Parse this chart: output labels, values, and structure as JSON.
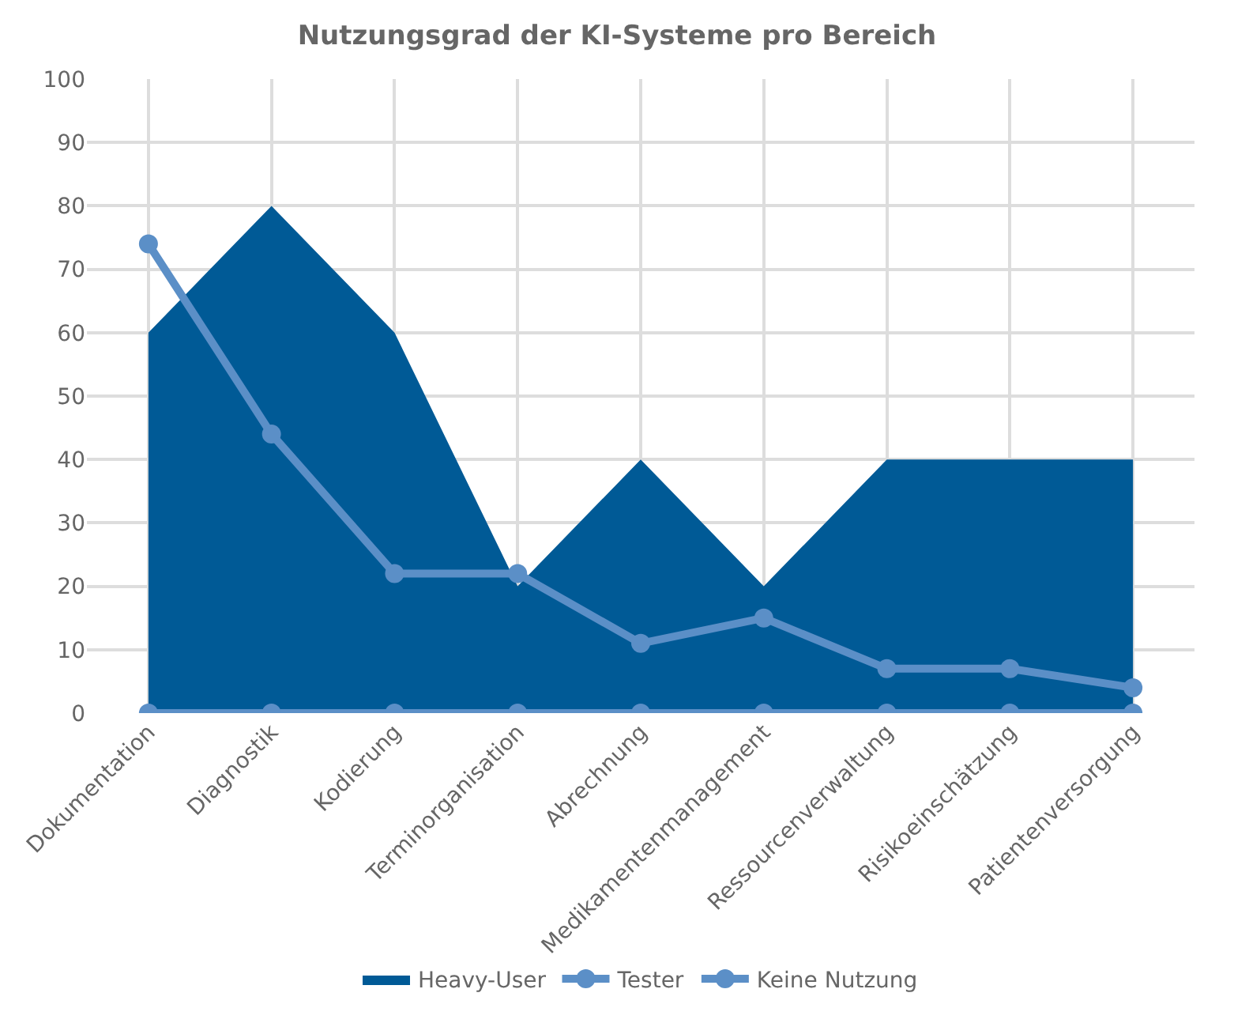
{
  "chart_data": {
    "type": "line",
    "title": "Nutzungsgrad der KI-Systeme pro Bereich",
    "categories": [
      "Dokumentation",
      "Diagnostik",
      "Kodierung",
      "Terminorganisation",
      "Abrechnung",
      "Medikamentenmanagement",
      "Ressourcenverwaltung",
      "Risikoeinschätzung",
      "Patientenversorgung"
    ],
    "series": [
      {
        "name": "Heavy-User",
        "type": "area",
        "color": "#005a96",
        "marker": "none",
        "values": [
          60,
          80,
          60,
          20,
          40,
          20,
          40,
          40,
          40
        ]
      },
      {
        "name": "Tester",
        "color": "#5b8fc7",
        "marker": "circle",
        "values": [
          74,
          44,
          22,
          22,
          11,
          15,
          7,
          7,
          4
        ]
      },
      {
        "name": "Keine Nutzung",
        "color": "#5b8fc7",
        "marker": "circle",
        "values": [
          0,
          0,
          0,
          0,
          0,
          0,
          0,
          0,
          0
        ]
      }
    ],
    "ylim": [
      0,
      100
    ],
    "yticks": [
      0,
      10,
      20,
      30,
      40,
      50,
      60,
      70,
      80,
      90,
      100
    ],
    "grid": true,
    "legend": "bottom",
    "line_style": "solid"
  }
}
